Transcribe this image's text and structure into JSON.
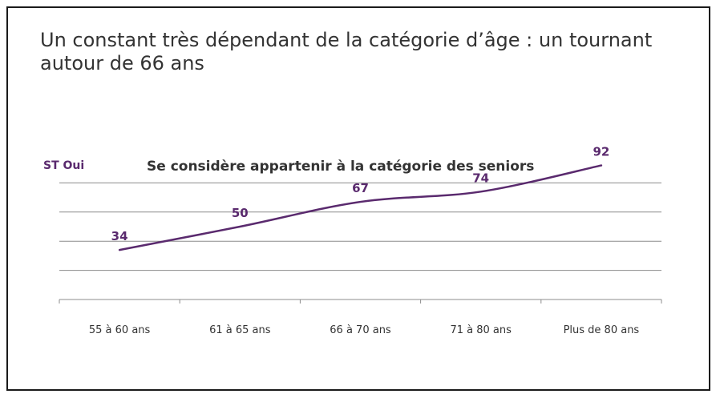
{
  "slide": {
    "title": "Un constant très dépendant de la catégorie d’âge : un tournant autour de 66 ans"
  },
  "chart_data": {
    "type": "line",
    "title": "Se considère appartenir à la catégorie des seniors",
    "series_label": "ST Oui",
    "categories": [
      "55 à 60 ans",
      "61 à 65 ans",
      "66 à 70 ans",
      "71 à 80 ans",
      "Plus de 80 ans"
    ],
    "series": [
      {
        "name": "ST Oui",
        "values": [
          34,
          50,
          67,
          74,
          92
        ]
      }
    ],
    "ylim": [
      0,
      100
    ],
    "grid": true,
    "line_color": "#5a2a6e",
    "label_color": "#5a2a6e"
  }
}
